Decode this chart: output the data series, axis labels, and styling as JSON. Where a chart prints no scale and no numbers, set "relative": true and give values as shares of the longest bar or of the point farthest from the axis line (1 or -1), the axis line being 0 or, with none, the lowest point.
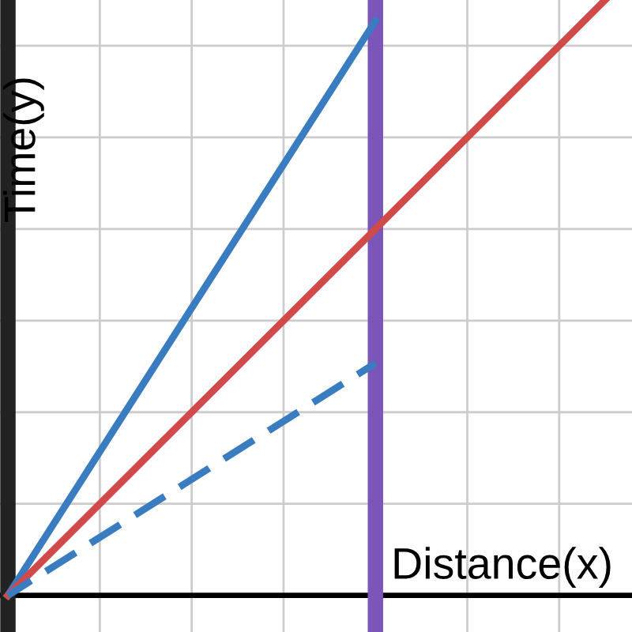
{
  "chart_data": {
    "type": "line",
    "relative": true,
    "xlabel": "Distance(x)",
    "ylabel": "Time(y)",
    "grid": true,
    "categories": [
      null,
      null,
      null,
      null,
      null,
      null,
      null,
      null,
      null,
      null,
      null,
      null,
      null,
      null
    ],
    "series": [
      {
        "color": "#3a7cc0",
        "values": [
          0,
          null,
          null,
          null,
          null,
          null,
          null,
          null,
          0.965,
          null,
          null,
          null,
          null,
          null
        ],
        "line_style": "solid"
      },
      {
        "color": "#d04a4a",
        "values": [
          0,
          null,
          null,
          null,
          null,
          null,
          null,
          null,
          null,
          null,
          null,
          null,
          null,
          1
        ],
        "line_style": "solid"
      },
      {
        "color": "#3a7cc0",
        "values": [
          0,
          null,
          null,
          null,
          null,
          null,
          null,
          null,
          0.39,
          null,
          null,
          null,
          null,
          null
        ],
        "line_style": "dashed"
      }
    ]
  }
}
